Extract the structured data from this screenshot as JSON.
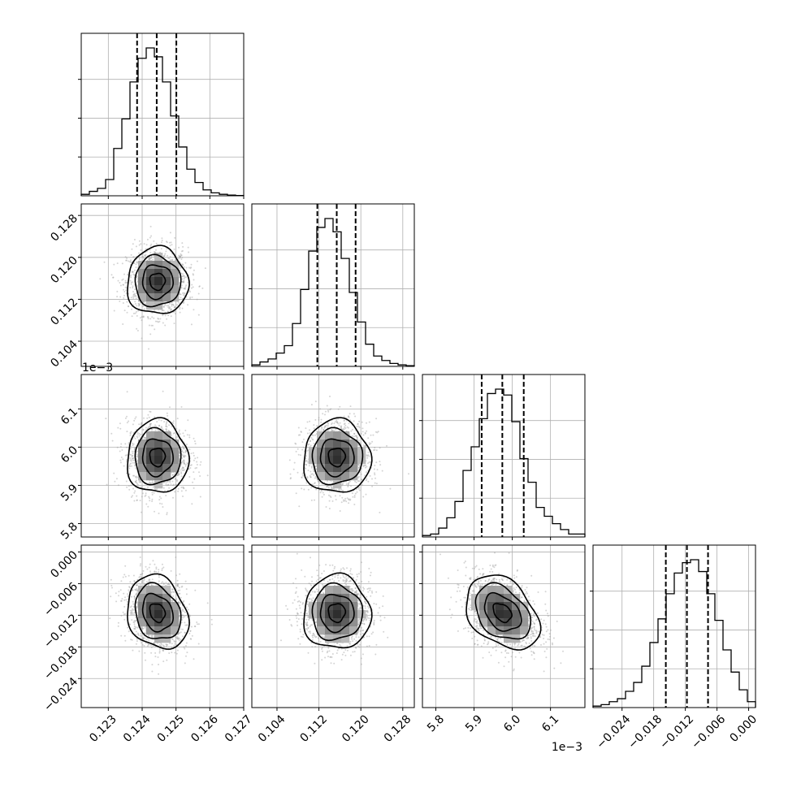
{
  "chart_data": {
    "type": "corner",
    "grid": true,
    "parameters": [
      {
        "range": [
          0.1222,
          0.127
        ],
        "ticks": [
          {
            "value": 0.123,
            "label": "0.123"
          },
          {
            "value": 0.124,
            "label": "0.124"
          },
          {
            "value": 0.125,
            "label": "0.125"
          },
          {
            "value": 0.126,
            "label": "0.126"
          },
          {
            "value": 0.127,
            "label": "0.127"
          }
        ],
        "offset_label": "",
        "mean": 0.12445,
        "sd": 0.00045,
        "quantiles": [
          0.12385,
          0.12443,
          0.12501
        ],
        "hist": [
          0.01,
          0.03,
          0.05,
          0.11,
          0.32,
          0.52,
          0.77,
          0.93,
          1.0,
          0.94,
          0.77,
          0.54,
          0.33,
          0.18,
          0.09,
          0.04,
          0.02,
          0.01,
          0.005,
          0.002
        ]
      },
      {
        "range": [
          0.0992,
          0.1302
        ],
        "ticks": [
          {
            "value": 0.104,
            "label": "0.104"
          },
          {
            "value": 0.112,
            "label": "0.112"
          },
          {
            "value": 0.12,
            "label": "0.120"
          },
          {
            "value": 0.128,
            "label": "0.128"
          }
        ],
        "offset_label": "",
        "mean": 0.1154,
        "sd": 0.0032,
        "quantiles": [
          0.1117,
          0.1154,
          0.119
        ],
        "hist": [
          0.01,
          0.03,
          0.05,
          0.09,
          0.14,
          0.29,
          0.52,
          0.78,
          0.94,
          1.0,
          0.91,
          0.73,
          0.5,
          0.3,
          0.15,
          0.07,
          0.04,
          0.02,
          0.01,
          0.005
        ]
      },
      {
        "range": [
          5.765,
          6.19
        ],
        "ticks": [
          {
            "value": 5.8,
            "label": "5.8"
          },
          {
            "value": 5.9,
            "label": "5.9"
          },
          {
            "value": 6.0,
            "label": "6.0"
          },
          {
            "value": 6.1,
            "label": "6.1"
          }
        ],
        "offset_label": "1e−3",
        "mean": 5.974,
        "sd": 0.048,
        "quantiles": [
          5.92,
          5.974,
          6.03
        ],
        "hist": [
          0.01,
          0.02,
          0.06,
          0.13,
          0.24,
          0.45,
          0.61,
          0.8,
          0.97,
          1.0,
          0.96,
          0.78,
          0.53,
          0.37,
          0.2,
          0.14,
          0.09,
          0.05,
          0.02,
          0.02
        ]
      },
      {
        "range": [
          -0.0295,
          0.0013
        ],
        "ticks": [
          {
            "value": -0.024,
            "label": "−0.024"
          },
          {
            "value": -0.018,
            "label": "−0.018"
          },
          {
            "value": -0.012,
            "label": "−0.012"
          },
          {
            "value": -0.006,
            "label": "−0.006"
          },
          {
            "value": 0.0,
            "label": "0.000"
          }
        ],
        "offset_label": "",
        "mean": -0.0115,
        "sd": 0.0035,
        "quantiles": [
          -0.0157,
          -0.0117,
          -0.0077
        ],
        "hist": [
          0.01,
          0.02,
          0.04,
          0.06,
          0.11,
          0.17,
          0.28,
          0.44,
          0.6,
          0.77,
          0.91,
          0.98,
          1.0,
          0.92,
          0.77,
          0.59,
          0.39,
          0.24,
          0.12,
          0.04
        ]
      }
    ],
    "correlations": [
      [
        1.0,
        0.0,
        0.0,
        -0.2
      ],
      [
        0.0,
        1.0,
        0.0,
        0.0
      ],
      [
        0.0,
        0.0,
        1.0,
        -0.35
      ],
      [
        -0.2,
        0.0,
        -0.35,
        1.0
      ]
    ],
    "contour_levels_sigma": [
      0.5,
      1.0,
      1.5,
      2.0
    ],
    "point_color": "#a0a0a0",
    "line_color": "#000000",
    "grid_color": "#b0b0b0"
  }
}
